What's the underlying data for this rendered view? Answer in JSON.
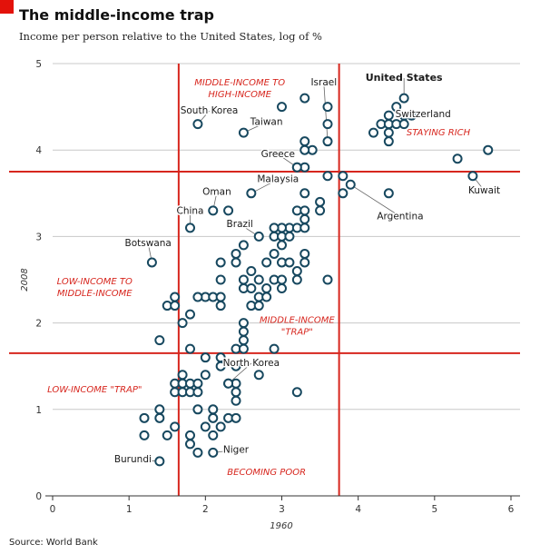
{
  "chart_data": {
    "type": "scatter",
    "title": "The middle-income trap",
    "subtitle": "Income per person relative to the United States, log of %",
    "source": "Source: World Bank",
    "xlabel": "1960",
    "ylabel": "2008",
    "xlim": [
      0,
      6
    ],
    "ylim": [
      0,
      5
    ],
    "xticks": [
      "0",
      "1",
      "2",
      "3",
      "4",
      "5",
      "6"
    ],
    "yticks": [
      "0",
      "1",
      "2",
      "3",
      "4",
      "5"
    ],
    "grid": "horizontal",
    "threshold_lines": {
      "x": [
        1.65,
        3.75
      ],
      "y": [
        1.65,
        3.75
      ]
    },
    "colors": {
      "accent": "#e3120b",
      "threshold": "#d7261e",
      "marker": "#17485f",
      "grid": "#c8c8c8"
    },
    "zone_labels": [
      {
        "lines": [
          "MIDDLE-INCOME TO",
          "HIGH-INCOME"
        ],
        "x": 2.45,
        "y": 4.75
      },
      {
        "lines": [
          "STAYING RICH"
        ],
        "x": 5.05,
        "y": 4.17
      },
      {
        "lines": [
          "LOW-INCOME TO",
          "MIDDLE-INCOME"
        ],
        "x": 0.55,
        "y": 2.45
      },
      {
        "lines": [
          "MIDDLE-INCOME",
          "\"TRAP\""
        ],
        "x": 3.2,
        "y": 2.0
      },
      {
        "lines": [
          "LOW-INCOME \"TRAP\""
        ],
        "x": 0.55,
        "y": 1.2
      },
      {
        "lines": [
          "BECOMING POOR"
        ],
        "x": 2.8,
        "y": 0.24
      }
    ],
    "labeled_points": [
      {
        "name": "United States",
        "x": 4.6,
        "y": 4.6,
        "bold": true,
        "lx": 4.6,
        "ly": 4.8
      },
      {
        "name": "Israel",
        "x": 3.6,
        "y": 4.1,
        "lx": 3.55,
        "ly": 4.75
      },
      {
        "name": "Switzerland",
        "x": 4.7,
        "y": 4.4,
        "lx": 4.85,
        "ly": 4.38
      },
      {
        "name": "South Korea",
        "x": 1.9,
        "y": 4.3,
        "lx": 2.05,
        "ly": 4.42
      },
      {
        "name": "Taiwan",
        "x": 2.5,
        "y": 4.2,
        "lx": 2.8,
        "ly": 4.29
      },
      {
        "name": "Greece",
        "x": 3.2,
        "y": 3.8,
        "lx": 2.95,
        "ly": 3.92
      },
      {
        "name": "Malaysia",
        "x": 2.6,
        "y": 3.5,
        "lx": 2.95,
        "ly": 3.63
      },
      {
        "name": "Oman",
        "x": 2.1,
        "y": 3.3,
        "lx": 2.15,
        "ly": 3.48
      },
      {
        "name": "China",
        "x": 1.8,
        "y": 3.1,
        "lx": 1.8,
        "ly": 3.26
      },
      {
        "name": "Brazil",
        "x": 2.7,
        "y": 3.0,
        "lx": 2.45,
        "ly": 3.11
      },
      {
        "name": "Argentina",
        "x": 3.9,
        "y": 3.6,
        "lx": 4.55,
        "ly": 3.2
      },
      {
        "name": "Kuwait",
        "x": 5.5,
        "y": 3.7,
        "lx": 5.65,
        "ly": 3.5
      },
      {
        "name": "Botswana",
        "x": 1.3,
        "y": 2.7,
        "lx": 1.25,
        "ly": 2.89
      },
      {
        "name": "North Korea",
        "x": 2.3,
        "y": 1.3,
        "lx": 2.6,
        "ly": 1.5
      },
      {
        "name": "Niger",
        "x": 2.1,
        "y": 0.5,
        "lx": 2.4,
        "ly": 0.5
      },
      {
        "name": "Burundi",
        "x": 1.4,
        "y": 0.4,
        "lx": 1.05,
        "ly": 0.39
      }
    ],
    "points": [
      [
        4.4,
        4.4
      ],
      [
        4.5,
        4.5
      ],
      [
        4.6,
        4.4
      ],
      [
        4.7,
        4.4
      ],
      [
        4.3,
        4.3
      ],
      [
        4.4,
        4.3
      ],
      [
        4.5,
        4.3
      ],
      [
        4.6,
        4.3
      ],
      [
        4.2,
        4.2
      ],
      [
        4.4,
        4.2
      ],
      [
        4.4,
        4.1
      ],
      [
        3.3,
        4.6
      ],
      [
        3.0,
        4.5
      ],
      [
        3.6,
        4.5
      ],
      [
        3.6,
        4.3
      ],
      [
        3.4,
        4.0
      ],
      [
        3.3,
        4.0
      ],
      [
        3.3,
        4.1
      ],
      [
        3.2,
        3.8
      ],
      [
        3.3,
        3.8
      ],
      [
        3.6,
        3.7
      ],
      [
        3.8,
        3.7
      ],
      [
        3.8,
        3.5
      ],
      [
        4.4,
        3.5
      ],
      [
        5.3,
        3.9
      ],
      [
        5.7,
        4.0
      ],
      [
        3.3,
        3.5
      ],
      [
        3.5,
        3.4
      ],
      [
        3.5,
        3.3
      ],
      [
        3.2,
        3.3
      ],
      [
        3.3,
        3.3
      ],
      [
        3.3,
        3.2
      ],
      [
        3.1,
        3.1
      ],
      [
        3.2,
        3.1
      ],
      [
        3.3,
        3.1
      ],
      [
        3.0,
        3.1
      ],
      [
        2.9,
        3.1
      ],
      [
        2.9,
        3.0
      ],
      [
        3.0,
        3.0
      ],
      [
        3.1,
        3.0
      ],
      [
        3.0,
        2.9
      ],
      [
        2.3,
        3.3
      ],
      [
        2.5,
        2.9
      ],
      [
        2.4,
        2.8
      ],
      [
        2.4,
        2.7
      ],
      [
        2.2,
        2.7
      ],
      [
        2.6,
        2.6
      ],
      [
        2.8,
        2.7
      ],
      [
        3.0,
        2.7
      ],
      [
        3.1,
        2.7
      ],
      [
        3.3,
        2.8
      ],
      [
        3.3,
        2.7
      ],
      [
        2.9,
        2.8
      ],
      [
        3.2,
        2.6
      ],
      [
        3.6,
        2.5
      ],
      [
        2.2,
        2.5
      ],
      [
        2.5,
        2.5
      ],
      [
        2.7,
        2.5
      ],
      [
        2.9,
        2.5
      ],
      [
        3.0,
        2.5
      ],
      [
        3.2,
        2.5
      ],
      [
        2.5,
        2.4
      ],
      [
        2.6,
        2.4
      ],
      [
        2.8,
        2.4
      ],
      [
        3.0,
        2.4
      ],
      [
        2.7,
        2.3
      ],
      [
        2.8,
        2.3
      ],
      [
        2.0,
        2.3
      ],
      [
        1.9,
        2.3
      ],
      [
        2.1,
        2.3
      ],
      [
        2.2,
        2.3
      ],
      [
        1.6,
        2.3
      ],
      [
        1.5,
        2.2
      ],
      [
        1.6,
        2.2
      ],
      [
        2.2,
        2.2
      ],
      [
        2.6,
        2.2
      ],
      [
        2.7,
        2.2
      ],
      [
        1.8,
        2.1
      ],
      [
        1.7,
        2.0
      ],
      [
        2.5,
        2.0
      ],
      [
        2.5,
        1.9
      ],
      [
        1.4,
        1.8
      ],
      [
        2.5,
        1.8
      ],
      [
        1.8,
        1.7
      ],
      [
        2.4,
        1.7
      ],
      [
        2.5,
        1.7
      ],
      [
        2.9,
        1.7
      ],
      [
        2.0,
        1.6
      ],
      [
        2.2,
        1.6
      ],
      [
        2.2,
        1.5
      ],
      [
        2.4,
        1.5
      ],
      [
        1.7,
        1.4
      ],
      [
        2.0,
        1.4
      ],
      [
        2.7,
        1.4
      ],
      [
        1.6,
        1.3
      ],
      [
        1.7,
        1.3
      ],
      [
        1.8,
        1.3
      ],
      [
        1.9,
        1.3
      ],
      [
        2.3,
        1.3
      ],
      [
        2.4,
        1.3
      ],
      [
        1.6,
        1.2
      ],
      [
        1.7,
        1.2
      ],
      [
        1.8,
        1.2
      ],
      [
        1.9,
        1.2
      ],
      [
        2.4,
        1.2
      ],
      [
        3.2,
        1.2
      ],
      [
        2.4,
        1.1
      ],
      [
        1.4,
        1.0
      ],
      [
        1.9,
        1.0
      ],
      [
        2.1,
        1.0
      ],
      [
        1.2,
        0.9
      ],
      [
        1.4,
        0.9
      ],
      [
        2.1,
        0.9
      ],
      [
        2.3,
        0.9
      ],
      [
        2.4,
        0.9
      ],
      [
        1.6,
        0.8
      ],
      [
        2.0,
        0.8
      ],
      [
        2.2,
        0.8
      ],
      [
        1.2,
        0.7
      ],
      [
        1.5,
        0.7
      ],
      [
        1.8,
        0.7
      ],
      [
        2.1,
        0.7
      ],
      [
        1.8,
        0.6
      ],
      [
        1.9,
        0.5
      ]
    ]
  }
}
